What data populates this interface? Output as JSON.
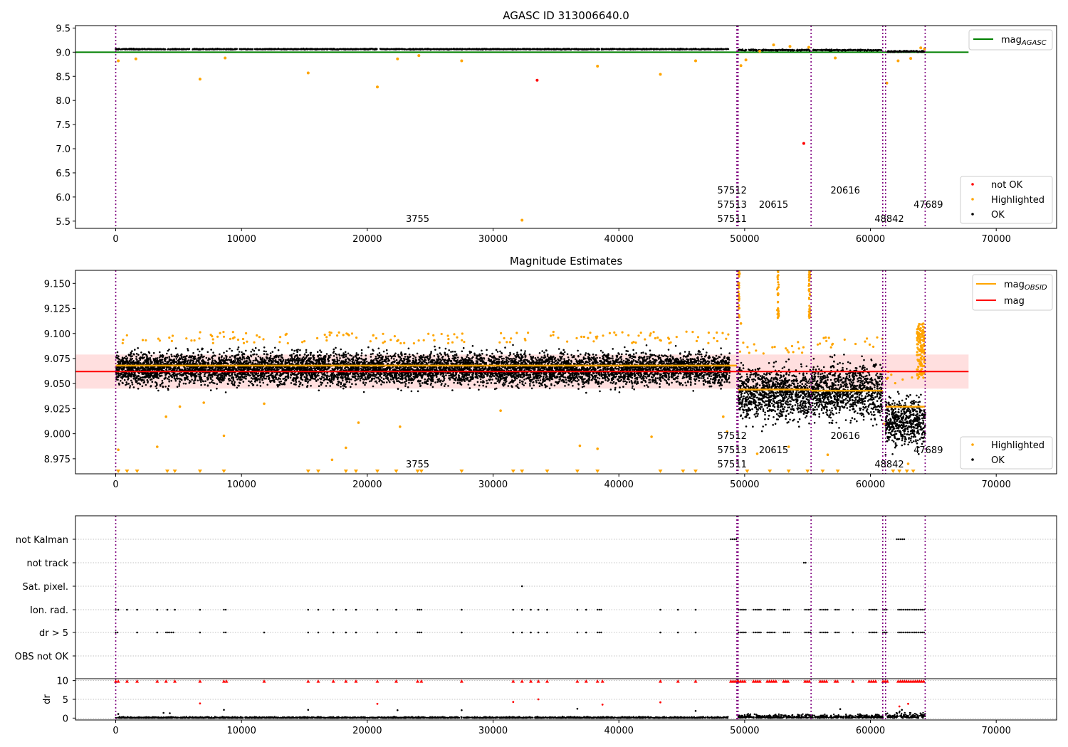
{
  "figure": {
    "obs_markers": [
      0,
      49380,
      49430,
      49480,
      55280,
      60980,
      61200,
      64350
    ],
    "obs_labels": [
      {
        "text": "3755",
        "x": 24000,
        "row": 2
      },
      {
        "text": "57512",
        "x": 49000,
        "row": 0
      },
      {
        "text": "57513",
        "x": 49000,
        "row": 1
      },
      {
        "text": "57511",
        "x": 49000,
        "row": 2
      },
      {
        "text": "20615",
        "x": 52300,
        "row": 1
      },
      {
        "text": "20616",
        "x": 58000,
        "row": 0
      },
      {
        "text": "47689",
        "x": 64600,
        "row": 1
      },
      {
        "text": "48842",
        "x": 61500,
        "row": 2
      }
    ],
    "colors": {
      "ok": "#000000",
      "highlighted": "#ffa500",
      "not_ok": "#ff0000",
      "agasc_line": "#008000",
      "mag_line": "#ff0000",
      "mag_obsid": "#ffa500",
      "marker": "#800080",
      "band": "#ffc0c0"
    }
  },
  "chart_data": [
    {
      "type": "scatter",
      "title": "AGASC ID 313006640.0",
      "xlim": [
        -3200,
        74800
      ],
      "ylim": [
        5.35,
        9.55
      ],
      "xticks": [
        0,
        10000,
        20000,
        30000,
        40000,
        50000,
        60000,
        70000
      ],
      "yticks": [
        5.5,
        6.0,
        6.5,
        7.0,
        7.5,
        8.0,
        8.5,
        9.0,
        9.5
      ],
      "legend": {
        "placement": "top-right",
        "entries": [
          {
            "label": "mag",
            "sub": "AGASC",
            "color": "#008000"
          }
        ]
      },
      "legend2": {
        "placement": "bottom-right",
        "entries": [
          {
            "label": "not OK",
            "color": "#ff0000"
          },
          {
            "label": "Highlighted",
            "color": "#ffa500"
          },
          {
            "label": "OK",
            "color": "#000000"
          }
        ]
      },
      "series": [
        {
          "name": "mag_AGASC",
          "kind": "hline",
          "y": 9.0,
          "x_range": [
            -3200,
            67800
          ]
        },
        {
          "name": "OK",
          "segments": [
            {
              "x": [
                0,
                48700
              ],
              "y": 9.062,
              "spread": 0.015
            },
            {
              "x": [
                49500,
                55200
              ],
              "y": 9.043,
              "spread": 0.02
            },
            {
              "x": [
                55400,
                60900
              ],
              "y": 9.042,
              "spread": 0.02
            },
            {
              "x": [
                61300,
                64300
              ],
              "y": 9.015,
              "spread": 0.025
            }
          ]
        },
        {
          "name": "not OK",
          "points": [
            [
              33500,
              8.42
            ],
            [
              54700,
              7.11
            ]
          ]
        },
        {
          "name": "Highlighted",
          "points": [
            [
              200,
              8.82
            ],
            [
              1600,
              8.86
            ],
            [
              6700,
              8.44
            ],
            [
              8700,
              8.88
            ],
            [
              15300,
              8.57
            ],
            [
              20800,
              8.28
            ],
            [
              22400,
              8.86
            ],
            [
              24100,
              8.93
            ],
            [
              27500,
              8.82
            ],
            [
              32300,
              5.52
            ],
            [
              38300,
              8.71
            ],
            [
              43300,
              8.54
            ],
            [
              46100,
              8.82
            ],
            [
              49700,
              8.72
            ],
            [
              50100,
              8.84
            ],
            [
              51200,
              9.02
            ],
            [
              52300,
              9.15
            ],
            [
              53600,
              9.12
            ],
            [
              55100,
              9.1
            ],
            [
              57200,
              8.88
            ],
            [
              61300,
              8.36
            ],
            [
              62200,
              8.82
            ],
            [
              63200,
              8.87
            ],
            [
              64000,
              9.09
            ],
            [
              64300,
              9.07
            ]
          ]
        }
      ]
    },
    {
      "type": "scatter",
      "title": "Magnitude Estimates",
      "xlim": [
        -3200,
        74800
      ],
      "ylim": [
        8.96,
        9.163
      ],
      "xticks": [
        0,
        10000,
        20000,
        30000,
        40000,
        50000,
        60000,
        70000
      ],
      "yticks": [
        8.975,
        9.0,
        9.025,
        9.05,
        9.075,
        9.1,
        9.125,
        9.15
      ],
      "legend": {
        "placement": "top-right",
        "entries": [
          {
            "label": "mag",
            "sub": "OBSID",
            "color": "#ffa500"
          },
          {
            "label": "mag",
            "sub": "",
            "color": "#ff0000"
          }
        ]
      },
      "legend2": {
        "placement": "bottom-right",
        "entries": [
          {
            "label": "Highlighted",
            "color": "#ffa500"
          },
          {
            "label": "OK",
            "color": "#000000"
          }
        ]
      },
      "mag": 9.062,
      "mag_band": [
        9.045,
        9.079
      ],
      "mag_range": [
        -3200,
        67800
      ],
      "obsid_mags": [
        {
          "x": [
            0,
            49380
          ],
          "y": 9.068
        },
        {
          "x": [
            49480,
            55280
          ],
          "y": 9.044
        },
        {
          "x": [
            55280,
            60980
          ],
          "y": 9.043
        },
        {
          "x": [
            60980,
            61200
          ],
          "y": 9.01
        },
        {
          "x": [
            61200,
            64350
          ],
          "y": 9.027
        }
      ],
      "ok_clouds": [
        {
          "x": [
            0,
            48800
          ],
          "lo": 9.04,
          "hi": 9.09
        },
        {
          "x": [
            49480,
            55280
          ],
          "lo": 9.0,
          "hi": 9.08
        },
        {
          "x": [
            55280,
            60980
          ],
          "lo": 9.0,
          "hi": 9.085
        },
        {
          "x": [
            61200,
            64350
          ],
          "lo": 8.975,
          "hi": 9.05
        }
      ],
      "highlighted_points": [
        [
          200,
          8.984
        ],
        [
          3300,
          8.987
        ],
        [
          4000,
          9.017
        ],
        [
          5100,
          9.027
        ],
        [
          7000,
          9.031
        ],
        [
          8600,
          8.998
        ],
        [
          11800,
          9.03
        ],
        [
          17200,
          8.974
        ],
        [
          18300,
          8.986
        ],
        [
          19300,
          9.011
        ],
        [
          22600,
          9.007
        ],
        [
          30600,
          9.023
        ],
        [
          36900,
          8.988
        ],
        [
          38300,
          8.985
        ],
        [
          42600,
          8.997
        ],
        [
          48300,
          9.017
        ],
        [
          48600,
          9.002
        ],
        [
          49700,
          9.11
        ],
        [
          51000,
          8.98
        ],
        [
          53500,
          8.987
        ],
        [
          56600,
          8.979
        ],
        [
          63000,
          8.97
        ],
        [
          64100,
          9.1
        ]
      ],
      "clipped_markers_x": [
        200,
        900,
        1700,
        4100,
        4700,
        6700,
        8600,
        15300,
        16100,
        18300,
        19100,
        20800,
        22300,
        24000,
        24300,
        27500,
        31600,
        32300,
        34300,
        36700,
        38300,
        43300,
        45100,
        46100,
        50200,
        52000,
        53500,
        55000,
        56200,
        57400,
        61800,
        62300,
        62900,
        63400
      ]
    },
    {
      "type": "scatter",
      "title": "",
      "xlim": [
        -3200,
        74800
      ],
      "categories": [
        "not Kalman",
        "not track",
        "Sat. pixel.",
        "Ion. rad.",
        "dr > 5",
        "OBS not OK"
      ],
      "flag_points": {
        "not Kalman": [
          [
            48900,
            49450
          ],
          [
            62100,
            62700
          ]
        ],
        "not track": [
          [
            54700,
            54900
          ]
        ],
        "Sat. pixel.": [
          [
            32300,
            32300
          ]
        ],
        "Ion. rad.": [
          [
            0,
            0
          ],
          [
            200,
            200
          ],
          [
            900,
            900
          ],
          [
            1700,
            1700
          ],
          [
            3300,
            3300
          ],
          [
            4100,
            4100
          ],
          [
            4700,
            4700
          ],
          [
            6700,
            6700
          ],
          [
            8600,
            8800
          ],
          [
            15300,
            15300
          ],
          [
            16100,
            16100
          ],
          [
            17300,
            17300
          ],
          [
            18300,
            18300
          ],
          [
            19100,
            19100
          ],
          [
            20800,
            20800
          ],
          [
            22300,
            22300
          ],
          [
            24000,
            24300
          ],
          [
            27500,
            27500
          ],
          [
            31600,
            31600
          ],
          [
            32300,
            32300
          ],
          [
            33000,
            33000
          ],
          [
            33600,
            33600
          ],
          [
            34300,
            34300
          ],
          [
            36700,
            36700
          ],
          [
            37400,
            37400
          ],
          [
            38300,
            38700
          ],
          [
            43300,
            43300
          ],
          [
            44700,
            44700
          ],
          [
            46100,
            46100
          ],
          [
            49500,
            50100
          ],
          [
            50700,
            51300
          ],
          [
            51800,
            52500
          ],
          [
            53100,
            53600
          ],
          [
            54800,
            55300
          ],
          [
            56000,
            56600
          ],
          [
            57200,
            57500
          ],
          [
            58600,
            58600
          ],
          [
            59900,
            60500
          ],
          [
            61000,
            61400
          ],
          [
            62200,
            64300
          ]
        ],
        "dr > 5": [
          [
            0,
            200
          ],
          [
            1700,
            1700
          ],
          [
            3300,
            3300
          ],
          [
            4000,
            4700
          ],
          [
            6700,
            6700
          ],
          [
            8600,
            8800
          ],
          [
            11800,
            11800
          ],
          [
            15300,
            15300
          ],
          [
            16100,
            16100
          ],
          [
            17300,
            17300
          ],
          [
            18300,
            18300
          ],
          [
            19100,
            19100
          ],
          [
            20800,
            20800
          ],
          [
            22300,
            22300
          ],
          [
            24000,
            24300
          ],
          [
            27500,
            27500
          ],
          [
            31600,
            31600
          ],
          [
            32300,
            32300
          ],
          [
            33000,
            33000
          ],
          [
            33600,
            33600
          ],
          [
            34300,
            34300
          ],
          [
            36700,
            36700
          ],
          [
            37400,
            37400
          ],
          [
            38300,
            38700
          ],
          [
            43300,
            43300
          ],
          [
            44700,
            44700
          ],
          [
            46100,
            46100
          ],
          [
            49500,
            50100
          ],
          [
            50700,
            51300
          ],
          [
            51800,
            52500
          ],
          [
            53100,
            53600
          ],
          [
            54800,
            55300
          ],
          [
            56000,
            56600
          ],
          [
            57200,
            57500
          ],
          [
            58600,
            58600
          ],
          [
            59900,
            60500
          ],
          [
            61000,
            61400
          ],
          [
            62200,
            64300
          ]
        ],
        "OBS not OK": []
      }
    },
    {
      "type": "scatter",
      "title": "",
      "ylabel": "dr",
      "xlim": [
        -3200,
        74800
      ],
      "ylim": [
        -0.5,
        10.5
      ],
      "xticks": [
        0,
        10000,
        20000,
        30000,
        40000,
        50000,
        60000,
        70000
      ],
      "yticks": [
        0,
        5,
        10
      ],
      "ok_band": [
        {
          "x": [
            0,
            48700
          ],
          "hi": 0.4
        },
        {
          "x": [
            49480,
            61000
          ],
          "hi": 1.2
        },
        {
          "x": [
            61200,
            64350
          ],
          "hi": 1.8
        }
      ],
      "red_triangles_x": [
        0,
        200,
        900,
        1700,
        3300,
        4000,
        4700,
        6700,
        8600,
        8800,
        11800,
        15300,
        16100,
        17300,
        18300,
        19100,
        20800,
        22300,
        24000,
        24300,
        27500,
        31600,
        32300,
        33000,
        33600,
        34300,
        36700,
        37400,
        38300,
        38700,
        43300,
        44700,
        46100
      ],
      "red_triangle_ranges": [
        [
          48900,
          49450
        ],
        [
          49500,
          50100
        ],
        [
          50700,
          51300
        ],
        [
          51800,
          52500
        ],
        [
          53100,
          53600
        ],
        [
          54800,
          55300
        ],
        [
          56000,
          56600
        ],
        [
          57200,
          57500
        ],
        [
          58600,
          58600
        ],
        [
          59900,
          60500
        ],
        [
          61000,
          61400
        ],
        [
          62200,
          64300
        ]
      ],
      "red_points": [
        [
          6700,
          3.9
        ],
        [
          20800,
          3.8
        ],
        [
          31600,
          4.3
        ],
        [
          33600,
          5.0
        ],
        [
          38700,
          3.6
        ],
        [
          43300,
          4.2
        ],
        [
          62300,
          3.1
        ],
        [
          63000,
          3.8
        ]
      ],
      "black_points": [
        [
          200,
          1.1
        ],
        [
          3800,
          1.4
        ],
        [
          4300,
          1.3
        ],
        [
          8600,
          2.2
        ],
        [
          15300,
          2.2
        ],
        [
          22400,
          2.1
        ],
        [
          27500,
          2.1
        ],
        [
          36700,
          2.5
        ],
        [
          46100,
          1.9
        ],
        [
          57600,
          2.4
        ],
        [
          62500,
          2.2
        ]
      ]
    }
  ]
}
